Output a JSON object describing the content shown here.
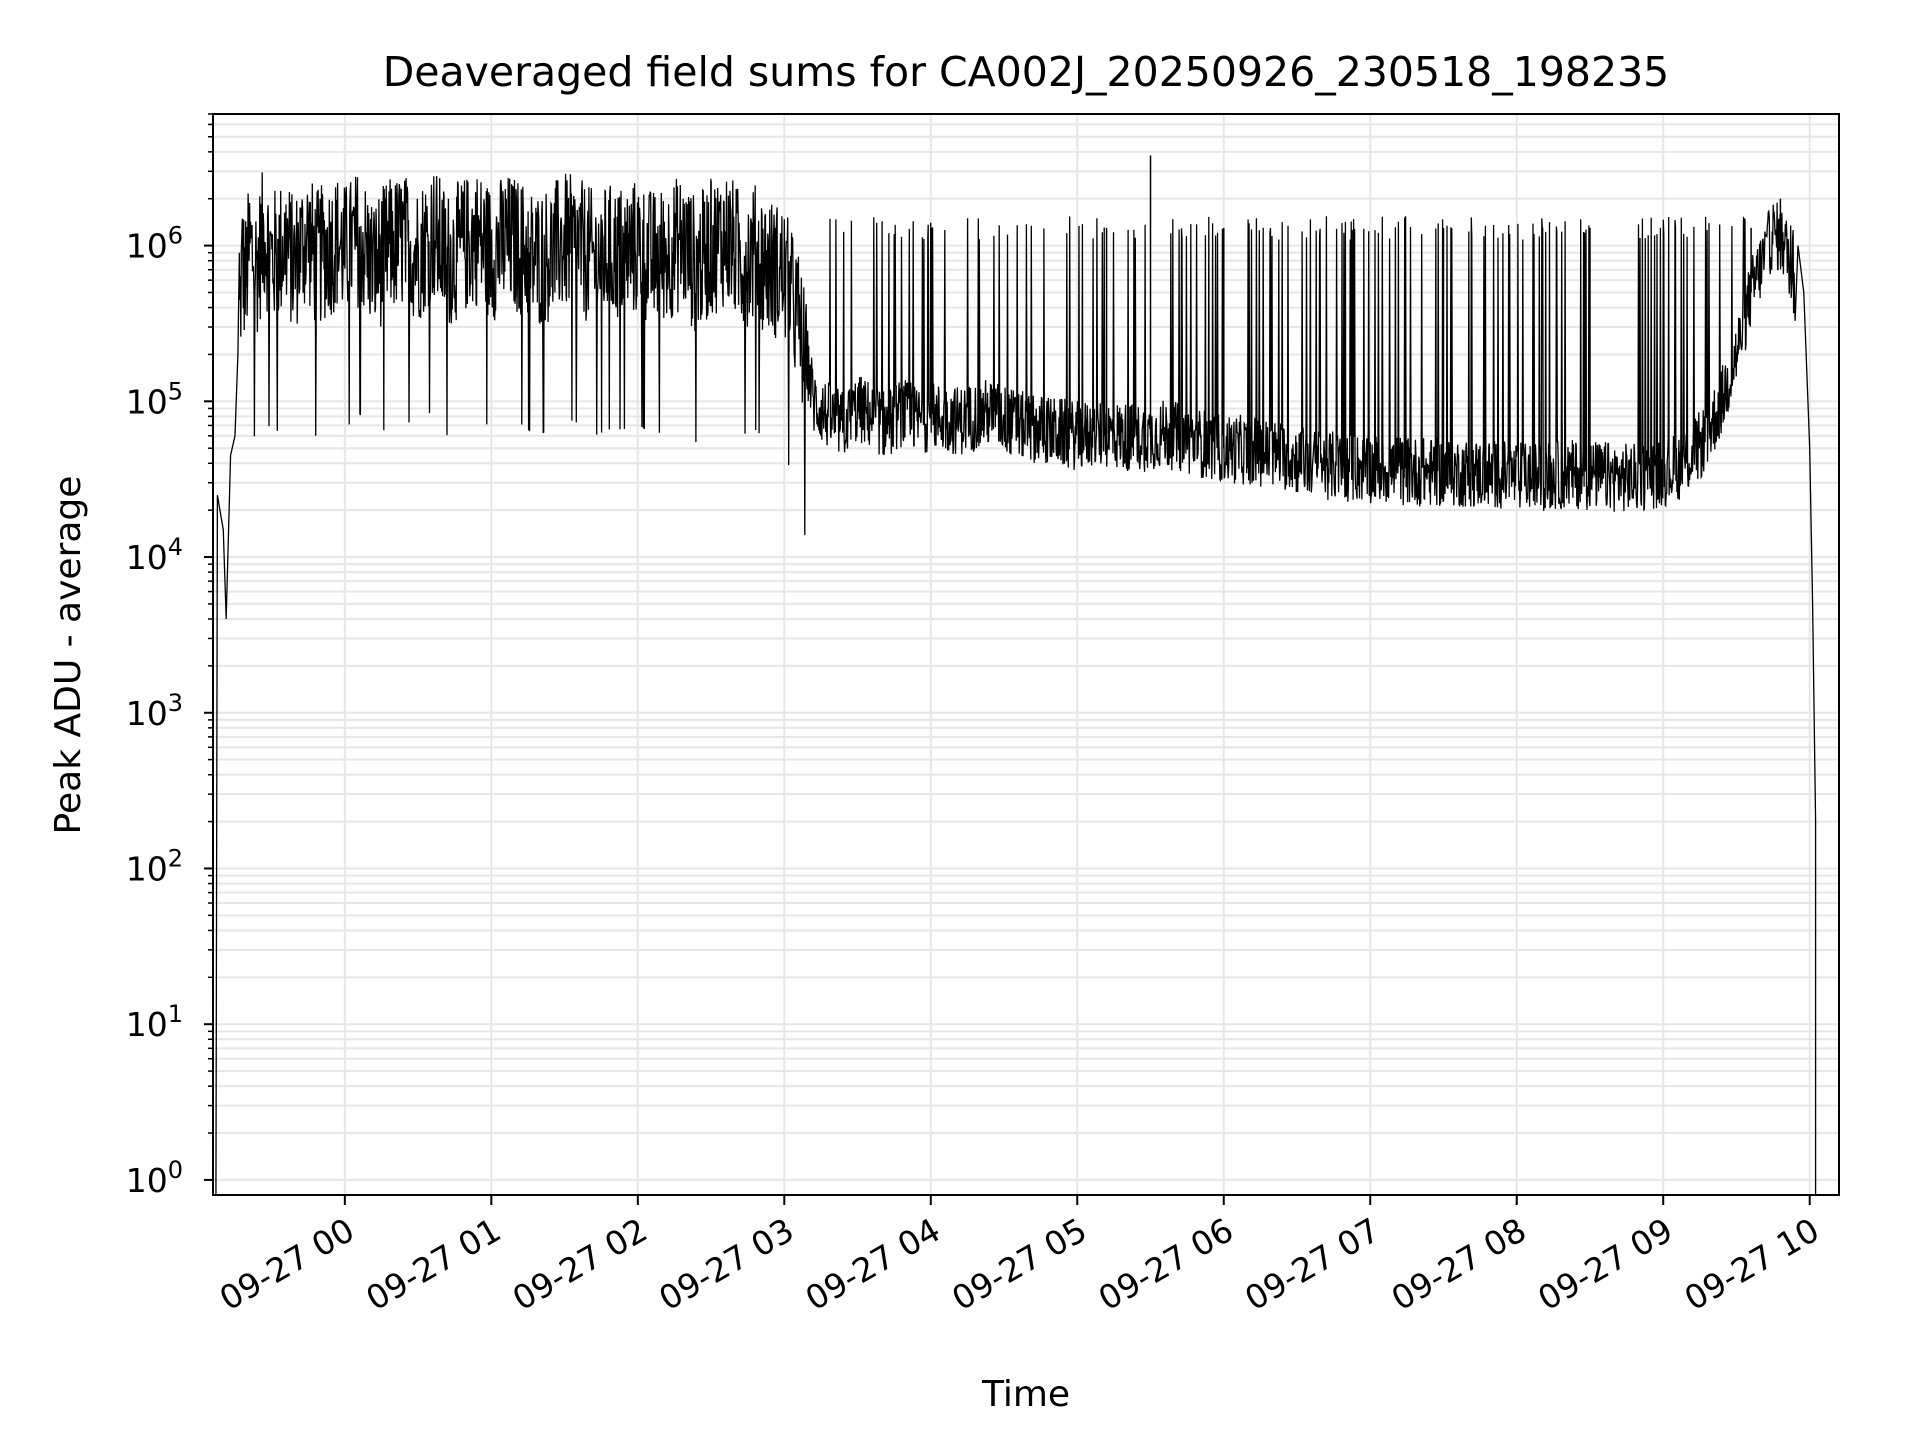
{
  "chart_data": {
    "type": "line",
    "title": "Deaveraged field sums for CA002J_20250926_230518_198235",
    "xlabel": "Time",
    "ylabel": "Peak ADU - average",
    "yscale": "log",
    "ylim": [
      0.8,
      7000000
    ],
    "xlim": [
      -0.9,
      10.2
    ],
    "grid": true,
    "line_color": "#000000",
    "x_ticks": [
      {
        "value": 0,
        "label": "09-27 00"
      },
      {
        "value": 1,
        "label": "09-27 01"
      },
      {
        "value": 2,
        "label": "09-27 02"
      },
      {
        "value": 3,
        "label": "09-27 03"
      },
      {
        "value": 4,
        "label": "09-27 04"
      },
      {
        "value": 5,
        "label": "09-27 05"
      },
      {
        "value": 6,
        "label": "09-27 06"
      },
      {
        "value": 7,
        "label": "09-27 07"
      },
      {
        "value": 8,
        "label": "09-27 08"
      },
      {
        "value": 9,
        "label": "09-27 09"
      },
      {
        "value": 10,
        "label": "09-27 10"
      }
    ],
    "y_ticks": [
      {
        "value": 1,
        "base": "10",
        "exp": "0"
      },
      {
        "value": 10,
        "base": "10",
        "exp": "1"
      },
      {
        "value": 100,
        "base": "10",
        "exp": "2"
      },
      {
        "value": 1000,
        "base": "10",
        "exp": "3"
      },
      {
        "value": 10000,
        "base": "10",
        "exp": "4"
      },
      {
        "value": 100000,
        "base": "10",
        "exp": "5"
      },
      {
        "value": 1000000,
        "base": "10",
        "exp": "6"
      }
    ],
    "series": [
      {
        "name": "field sums",
        "note": "time in hours relative to 09-27 00:00; dense noisy trace summarized by envelope points",
        "x": [
          -0.88,
          -0.87,
          -0.85,
          -0.8,
          -0.78,
          -0.76,
          -0.74,
          -0.73,
          -0.8,
          -0.78,
          -0.75,
          -0.72,
          -0.7,
          -0.68,
          -0.65,
          -0.6,
          -0.55,
          -0.5,
          -0.45,
          -0.4,
          -0.35,
          -0.3,
          -0.25,
          -0.2,
          -0.15,
          -0.1,
          -0.05,
          0.0,
          0.1,
          0.2,
          0.3,
          0.4,
          0.5,
          0.6,
          0.7,
          0.8,
          0.9,
          1.0,
          1.1,
          1.2,
          1.3,
          1.4,
          1.5,
          1.6,
          1.7,
          1.8,
          1.9,
          2.0,
          2.1,
          2.2,
          2.3,
          2.4,
          2.5,
          2.6,
          2.7,
          2.8,
          2.9,
          3.0,
          3.1,
          3.2,
          3.3,
          3.4,
          3.5,
          3.6,
          3.7,
          3.8,
          3.9,
          4.0,
          4.2,
          4.4,
          4.6,
          4.8,
          5.0,
          5.2,
          5.4,
          5.5,
          5.6,
          5.8,
          6.0,
          6.2,
          6.4,
          6.6,
          6.8,
          7.0,
          7.2,
          7.4,
          7.6,
          7.8,
          8.0,
          8.2,
          8.4,
          8.6,
          8.8,
          9.0,
          9.1,
          9.2,
          9.3,
          9.4,
          9.5,
          9.6,
          9.7,
          9.75,
          9.8,
          9.85,
          9.9,
          9.95,
          10.0,
          10.02,
          10.04
        ],
        "y": [
          0.8,
          25000,
          15000,
          10000,
          4000,
          30000,
          60000,
          45000,
          20000,
          50000,
          100000,
          400000,
          1000000,
          700000,
          1200000,
          900000,
          1500000,
          1000000,
          1100000,
          1300000,
          900000,
          1200000,
          1400000,
          1000000,
          1100000,
          1200000,
          1300000,
          1100000,
          1400000,
          900000,
          1200000,
          1300000,
          1100000,
          1500000,
          1000000,
          1200000,
          1400000,
          1100000,
          1300000,
          1200000,
          1000000,
          1100000,
          1300000,
          1200000,
          1000000,
          1100000,
          1100000,
          1200000,
          1000000,
          1100000,
          1300000,
          900000,
          1200000,
          1400000,
          1000000,
          1100000,
          900000,
          800000,
          400000,
          100000,
          80000,
          70000,
          90000,
          80000,
          70000,
          85000,
          75000,
          80000,
          75000,
          85000,
          70000,
          65000,
          60000,
          62000,
          58000,
          60000,
          62000,
          55000,
          50000,
          48000,
          45000,
          40000,
          38000,
          37000,
          36000,
          35000,
          35000,
          34000,
          33000,
          33000,
          34000,
          33000,
          32000,
          35000,
          38000,
          45000,
          60000,
          100000,
          200000,
          500000,
          900000,
          1200000,
          1100000,
          900000,
          500000,
          100000,
          5000,
          200,
          0.8
        ],
        "spikes": [
          {
            "x": 2.5,
            "y": 2600000
          },
          {
            "x": 5.5,
            "y": 3800000
          },
          {
            "x": 5.2,
            "y": 1300000
          },
          {
            "x": 6.0,
            "y": 1300000
          },
          {
            "x": 7.5,
            "y": 1300000
          },
          {
            "x": 8.5,
            "y": 1300000
          },
          {
            "x": 9.6,
            "y": 1300000
          },
          {
            "x": 9.8,
            "y": 2000000
          }
        ]
      }
    ]
  }
}
